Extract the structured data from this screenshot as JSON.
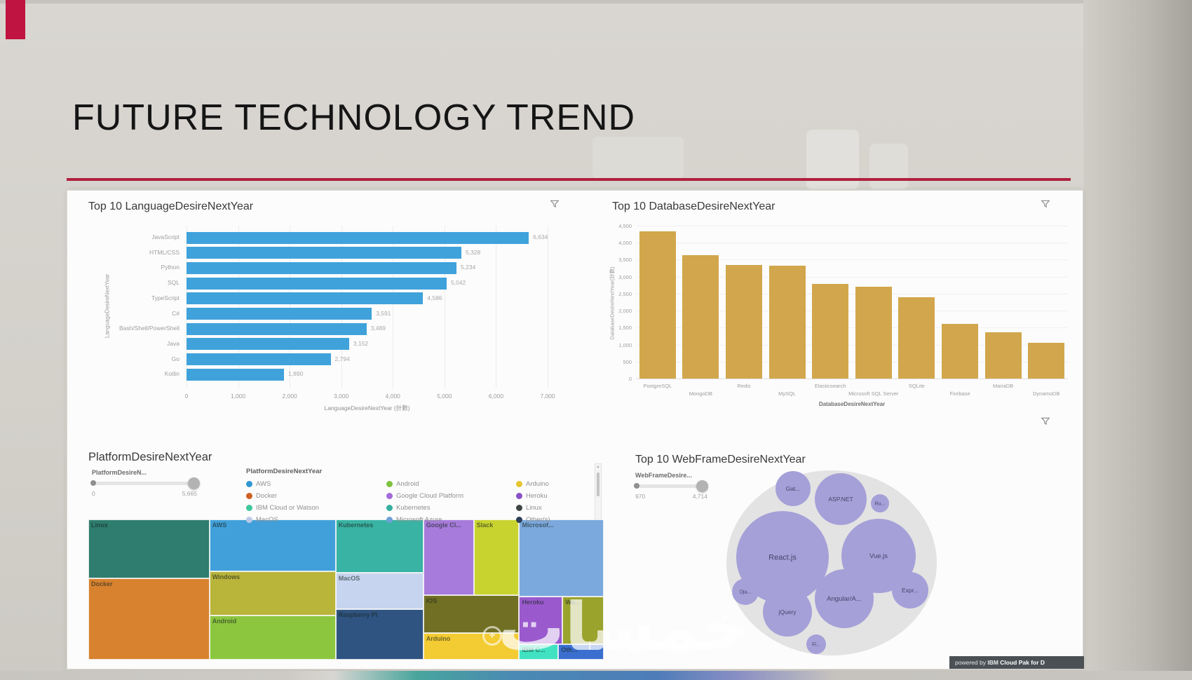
{
  "slide": {
    "title": "FUTURE TECHNOLOGY TREND",
    "watermark_text": "خمسات",
    "accent_color": "#b0203e",
    "powered_by": {
      "prefix": "powered by",
      "brand": "IBM",
      "product": "Cloud Pak for D"
    }
  },
  "chart_data": [
    {
      "id": "language",
      "type": "bar",
      "orientation": "horizontal",
      "title": "Top 10 LanguageDesireNextYear",
      "categories": [
        "JavaScript",
        "HTML/CSS",
        "Python",
        "SQL",
        "TypeScript",
        "C#",
        "Bash/Shell/PowerShell",
        "Java",
        "Go",
        "Kotlin"
      ],
      "values": [
        6634,
        5328,
        5234,
        5042,
        4586,
        3591,
        3489,
        3152,
        2794,
        1890
      ],
      "value_labels": [
        "6,634",
        "5,328",
        "5,234",
        "5,042",
        "4,586",
        "3,591",
        "3,489",
        "3,152",
        "2,794",
        "1,890"
      ],
      "xlabel": "LanguageDesireNextYear (計數)",
      "ylabel": "LanguageDesireNextYear",
      "xlim": [
        0,
        7000
      ],
      "x_ticks": [
        "0",
        "1,000",
        "2,000",
        "3,000",
        "4,000",
        "5,000",
        "6,000",
        "7,000"
      ],
      "bar_color": "#3fa2db",
      "grid": true,
      "legend_position": "none"
    },
    {
      "id": "database",
      "type": "bar",
      "orientation": "vertical",
      "title": "Top 10 DatabaseDesireNextYear",
      "categories": [
        "PostgreSQL",
        "MongoDB",
        "Redis",
        "MySQL",
        "Elasticsearch",
        "Microsoft SQL Server",
        "SQLite",
        "Firebase",
        "MariaDB",
        "DynamoDB"
      ],
      "values": [
        4330,
        3630,
        3350,
        3320,
        2780,
        2700,
        2400,
        1620,
        1370,
        1060
      ],
      "xlabel": "DatabaseDesireNextYear",
      "ylabel": "DatabaseDesireNextYear(計數)",
      "ylim": [
        0,
        4500
      ],
      "y_ticks": [
        "4,500",
        "4,000",
        "3,500",
        "3,000",
        "2,500",
        "2,000",
        "1,500",
        "1,000",
        "500",
        "0"
      ],
      "bar_color": "#d2a64c",
      "grid": true,
      "legend_position": "none"
    },
    {
      "id": "platform",
      "type": "treemap",
      "title": "PlatformDesireNextYear",
      "slider": {
        "label": "PlatformDesireN...",
        "min": "0",
        "max": "5,665"
      },
      "legend_title": "PlatformDesireNextYear",
      "legend": [
        {
          "label": "AWS",
          "color": "#3096d2"
        },
        {
          "label": "Docker",
          "color": "#cd6026"
        },
        {
          "label": "IBM Cloud or Watson",
          "color": "#3fc79c"
        },
        {
          "label": "MacOS",
          "color": "#bcc9e6"
        },
        {
          "label": "Android",
          "color": "#7fc241"
        },
        {
          "label": "Google Cloud Platform",
          "color": "#a36bd8"
        },
        {
          "label": "Kubernetes",
          "color": "#35b0a0"
        },
        {
          "label": "Microsoft Azure",
          "color": "#6f9fd9"
        },
        {
          "label": "Arduino",
          "color": "#e6c52f"
        },
        {
          "label": "Heroku",
          "color": "#8a50c5"
        },
        {
          "label": "Linux",
          "color": "#3f4744"
        },
        {
          "label": "Other(s)",
          "color": "#2d3d55"
        }
      ],
      "tiles": [
        {
          "label": "Linux",
          "color": "#2e7d6e",
          "x": 0,
          "y": 0,
          "w": 23.5,
          "h": 42
        },
        {
          "label": "Docker",
          "color": "#d8822f",
          "x": 0,
          "y": 42,
          "w": 23.5,
          "h": 58
        },
        {
          "label": "AWS",
          "color": "#41a0da",
          "x": 23.5,
          "y": 0,
          "w": 24.5,
          "h": 37
        },
        {
          "label": "Windows",
          "color": "#b9b43a",
          "x": 23.5,
          "y": 37,
          "w": 24.5,
          "h": 31.5
        },
        {
          "label": "Android",
          "color": "#8cc63f",
          "x": 23.5,
          "y": 68.5,
          "w": 24.5,
          "h": 31.5
        },
        {
          "label": "Kubernetes",
          "color": "#39b3a3",
          "x": 48,
          "y": 0,
          "w": 17,
          "h": 38
        },
        {
          "label": "MacOS",
          "color": "#c7d4ef",
          "x": 48,
          "y": 38,
          "w": 17,
          "h": 26
        },
        {
          "label": "Raspberry Pi",
          "color": "#2f5481",
          "x": 48,
          "y": 64,
          "w": 17,
          "h": 36
        },
        {
          "label": "Google Cl...",
          "color": "#a77bdb",
          "x": 65,
          "y": 0,
          "w": 9.8,
          "h": 54
        },
        {
          "label": "Slack",
          "color": "#c9d330",
          "x": 74.8,
          "y": 0,
          "w": 8.8,
          "h": 54
        },
        {
          "label": "Microsof...",
          "color": "#7ba9de",
          "x": 83.6,
          "y": 0,
          "w": 16.4,
          "h": 55
        },
        {
          "label": "iOS",
          "color": "#716f23",
          "x": 65,
          "y": 54,
          "w": 18.6,
          "h": 27
        },
        {
          "label": "Arduino",
          "color": "#f3cb32",
          "x": 65,
          "y": 81,
          "w": 18.6,
          "h": 19
        },
        {
          "label": "Heroku",
          "color": "#9a5ace",
          "x": 83.6,
          "y": 55,
          "w": 8.4,
          "h": 34
        },
        {
          "label": "Wo...",
          "color": "#9aa32c",
          "x": 92,
          "y": 55,
          "w": 8,
          "h": 34
        },
        {
          "label": "IBM C...",
          "color": "#40e2c1",
          "x": 83.6,
          "y": 89,
          "w": 7.6,
          "h": 11
        },
        {
          "label": "Oth...",
          "color": "#3a6fd0",
          "x": 91.2,
          "y": 89,
          "w": 8.8,
          "h": 11
        }
      ]
    },
    {
      "id": "webframe",
      "type": "bubble",
      "title": "Top 10 WebFrameDesireNextYear",
      "slider": {
        "label": "WebFrameDesire...",
        "min": "970",
        "max": "4,714"
      },
      "bubble_color": "#a5a0d8",
      "bubbles": [
        {
          "label": "React.js",
          "cx": 265,
          "cy": 160,
          "r": 66
        },
        {
          "label": "Vue.js",
          "cx": 402,
          "cy": 158,
          "r": 53
        },
        {
          "label": "ASP.NET",
          "cx": 348,
          "cy": 77,
          "r": 37
        },
        {
          "label": "Gat...",
          "cx": 280,
          "cy": 62,
          "r": 25
        },
        {
          "label": "Ru...",
          "cx": 404,
          "cy": 83,
          "r": 13
        },
        {
          "label": "Expr...",
          "cx": 447,
          "cy": 207,
          "r": 26
        },
        {
          "label": "Angular/A...",
          "cx": 353,
          "cy": 219,
          "r": 42
        },
        {
          "label": "jQuery",
          "cx": 272,
          "cy": 238,
          "r": 35
        },
        {
          "label": "Dja...",
          "cx": 212,
          "cy": 209,
          "r": 19
        },
        {
          "label": "Fl...",
          "cx": 313,
          "cy": 284,
          "r": 14
        }
      ]
    }
  ]
}
